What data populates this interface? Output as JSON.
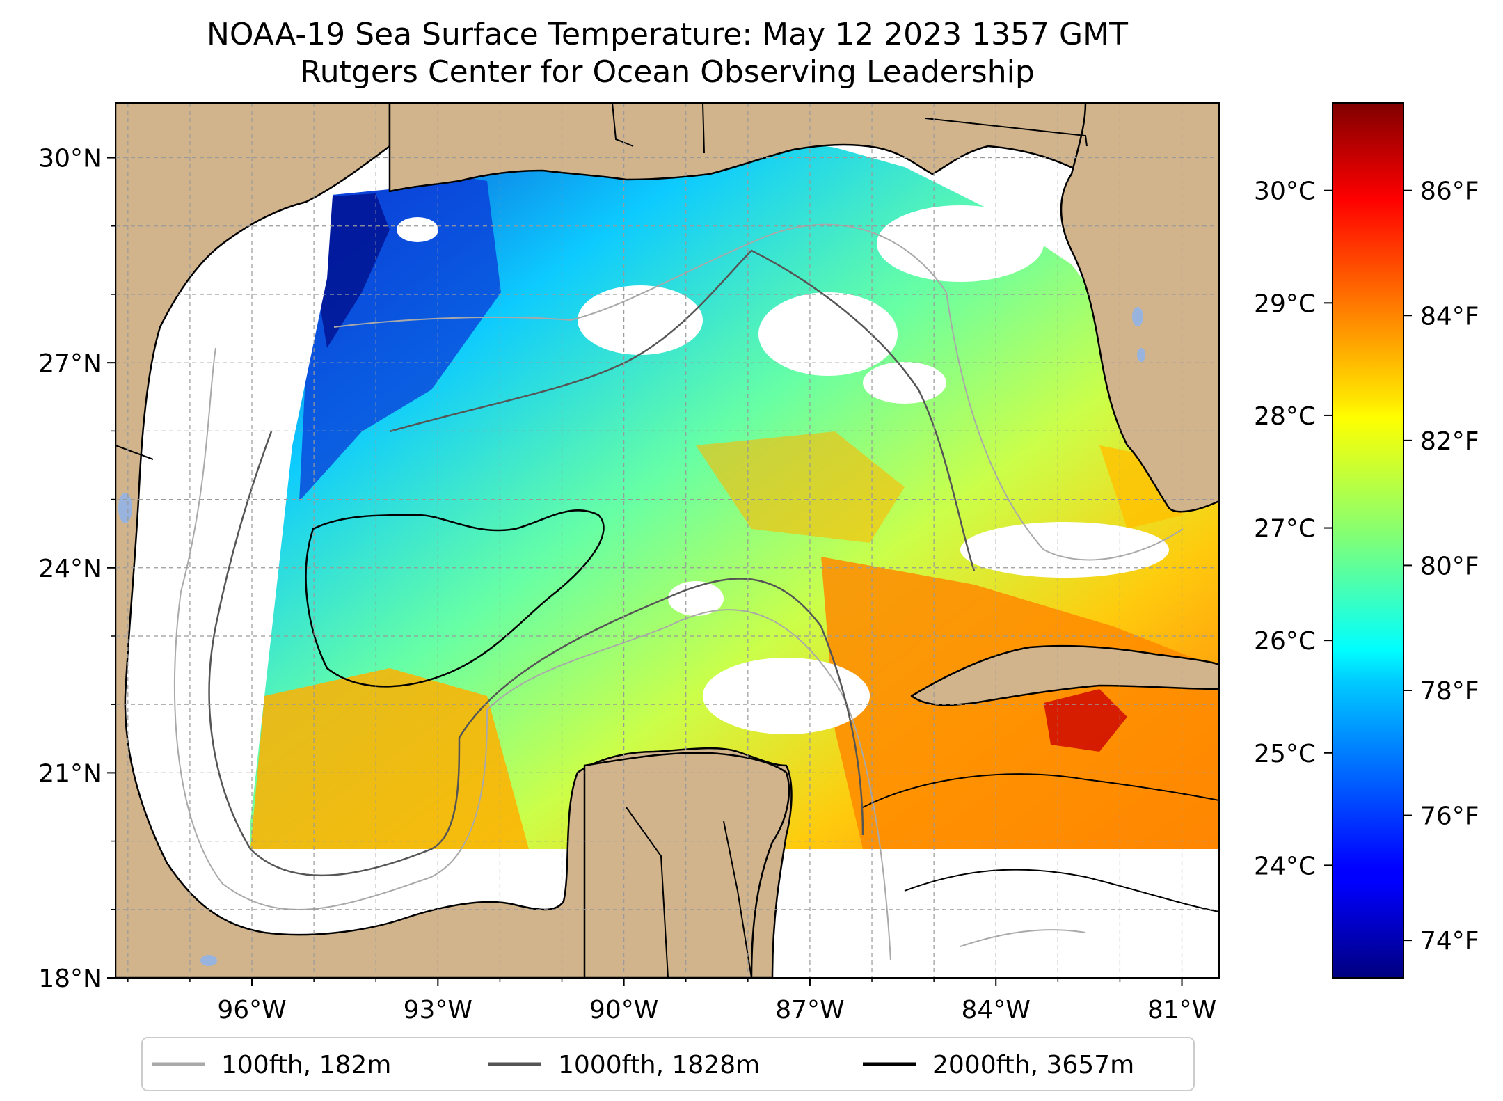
{
  "title": "NOAA-19 Sea Surface Temperature: May 12 2023 1357 GMT",
  "subtitle": "Rutgers Center for Ocean Observing Leadership",
  "map": {
    "region": "Gulf of Mexico",
    "lon_range": [
      -98.2,
      -80.4
    ],
    "lat_range": [
      18.0,
      30.8
    ],
    "gridlines": true,
    "lat_ticks": [
      {
        "value": 30,
        "label": "30°N"
      },
      {
        "value": 27,
        "label": "27°N"
      },
      {
        "value": 24,
        "label": "24°N"
      },
      {
        "value": 21,
        "label": "21°N"
      },
      {
        "value": 18,
        "label": "18°N"
      }
    ],
    "lon_ticks": [
      {
        "value": -96,
        "label": "96°W"
      },
      {
        "value": -93,
        "label": "93°W"
      },
      {
        "value": -90,
        "label": "90°W"
      },
      {
        "value": -87,
        "label": "87°W"
      },
      {
        "value": -84,
        "label": "84°W"
      },
      {
        "value": -81,
        "label": "81°W"
      }
    ],
    "colors": {
      "land": "#d2b48c",
      "no_data": "#ffffff",
      "lakes": "#98b4de",
      "coastline": "#000000"
    }
  },
  "colorbar": {
    "colormap": "jet",
    "range_f": [
      73.4,
      87.4
    ],
    "celsius_ticks": [
      {
        "value": 30,
        "label": "30°C"
      },
      {
        "value": 29,
        "label": "29°C"
      },
      {
        "value": 28,
        "label": "28°C"
      },
      {
        "value": 27,
        "label": "27°C"
      },
      {
        "value": 26,
        "label": "26°C"
      },
      {
        "value": 25,
        "label": "25°C"
      },
      {
        "value": 24,
        "label": "24°C"
      }
    ],
    "fahrenheit_ticks": [
      {
        "value": 86,
        "label": "86°F"
      },
      {
        "value": 84,
        "label": "84°F"
      },
      {
        "value": 82,
        "label": "82°F"
      },
      {
        "value": 80,
        "label": "80°F"
      },
      {
        "value": 78,
        "label": "78°F"
      },
      {
        "value": 76,
        "label": "76°F"
      },
      {
        "value": 74,
        "label": "74°F"
      }
    ]
  },
  "legend": {
    "entries": [
      {
        "label": "100fth, 182m",
        "color": "#a9a9a9"
      },
      {
        "label": "1000fth, 1828m",
        "color": "#555555"
      },
      {
        "label": "2000fth, 3657m",
        "color": "#000000"
      }
    ]
  }
}
